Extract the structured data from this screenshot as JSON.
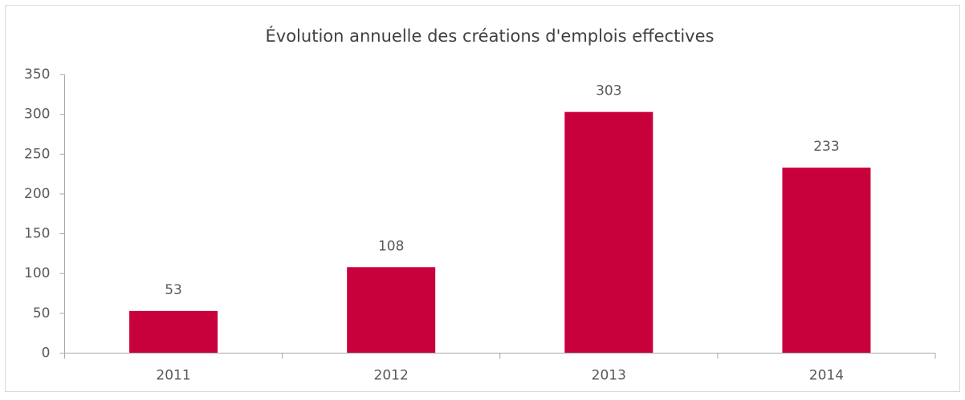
{
  "chart_data": {
    "type": "bar",
    "title": "Évolution annuelle des créations d'emplois effectives",
    "categories": [
      "2011",
      "2012",
      "2013",
      "2014"
    ],
    "values": [
      53,
      108,
      303,
      233
    ],
    "color": "#c8003c",
    "ylim": [
      0,
      350
    ],
    "yticks": [
      0,
      50,
      100,
      150,
      200,
      250,
      300,
      350
    ],
    "grid": false
  }
}
